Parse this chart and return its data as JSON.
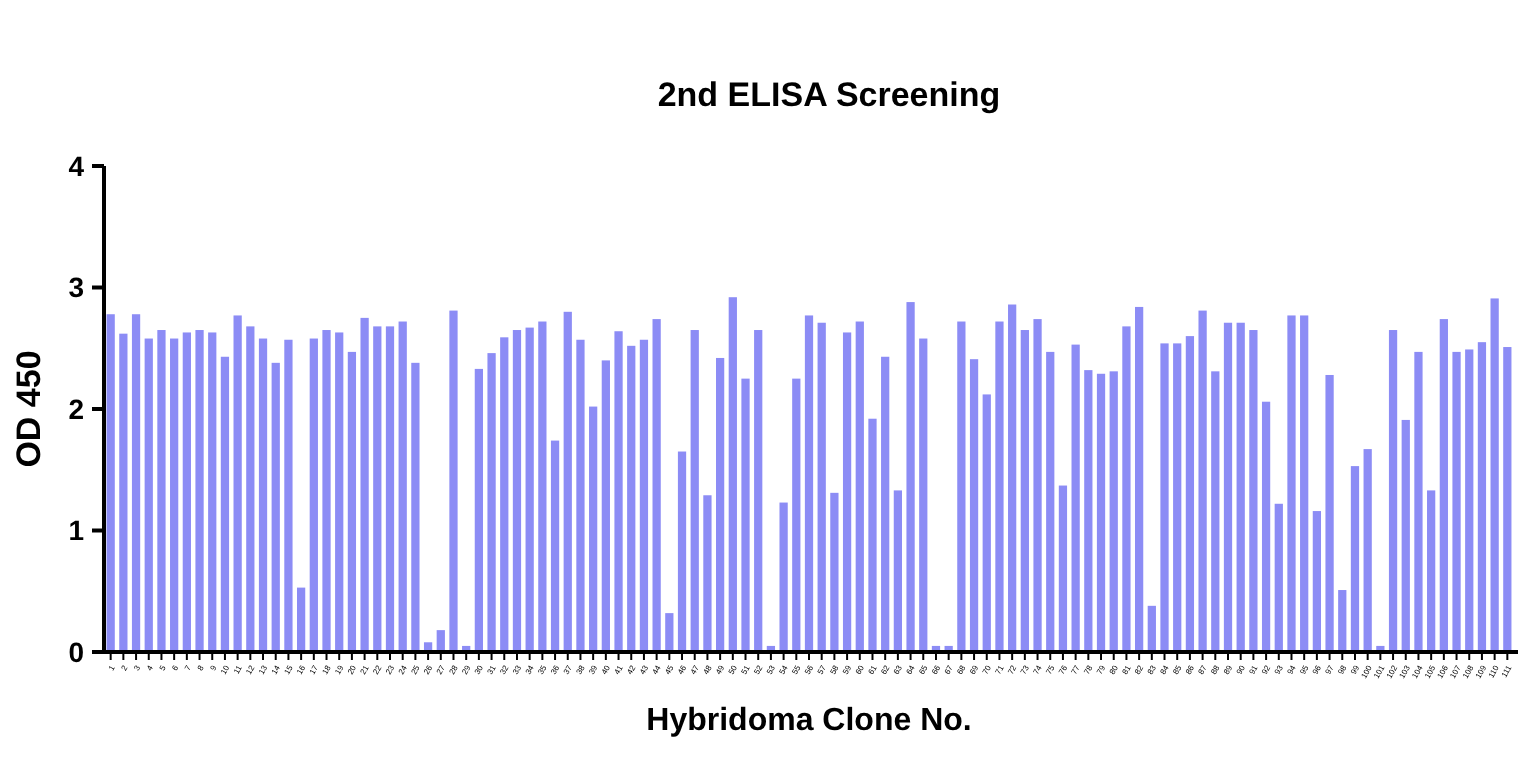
{
  "chart_data": {
    "type": "bar",
    "title": "2nd ELISA Screening",
    "xlabel": "Hybridoma Clone No.",
    "ylabel": "OD 450",
    "categories": [
      "1",
      "2",
      "3",
      "4",
      "5",
      "6",
      "7",
      "8",
      "9",
      "10",
      "11",
      "12",
      "13",
      "14",
      "15",
      "16",
      "17",
      "18",
      "19",
      "20",
      "21",
      "22",
      "23",
      "24",
      "25",
      "26",
      "27",
      "28",
      "29",
      "30",
      "31",
      "32",
      "33",
      "34",
      "35",
      "36",
      "37",
      "38",
      "39",
      "40",
      "41",
      "42",
      "43",
      "44",
      "45",
      "46",
      "47",
      "48",
      "49",
      "50",
      "51",
      "52",
      "53",
      "54",
      "55",
      "56",
      "57",
      "58",
      "59",
      "60",
      "61",
      "62",
      "63",
      "64",
      "65",
      "66",
      "67",
      "68",
      "69",
      "70",
      "71",
      "72",
      "73",
      "74",
      "75",
      "76",
      "77",
      "78",
      "79",
      "80",
      "81",
      "82",
      "83",
      "84",
      "85",
      "86",
      "87",
      "88",
      "89",
      "90",
      "91",
      "92",
      "93",
      "94",
      "95",
      "96",
      "97",
      "98",
      "99",
      "100",
      "101",
      "102",
      "103",
      "104",
      "105",
      "106",
      "107",
      "108",
      "109",
      "110",
      "111"
    ],
    "values": [
      2.78,
      2.62,
      2.78,
      2.58,
      2.65,
      2.58,
      2.63,
      2.65,
      2.63,
      2.43,
      2.77,
      2.68,
      2.58,
      2.38,
      2.57,
      0.53,
      2.58,
      2.65,
      2.63,
      2.47,
      2.75,
      2.68,
      2.68,
      2.72,
      2.38,
      0.08,
      0.18,
      2.81,
      0.05,
      2.33,
      2.46,
      2.59,
      2.65,
      2.67,
      2.72,
      1.74,
      2.8,
      2.57,
      2.02,
      2.4,
      2.64,
      2.52,
      2.57,
      2.74,
      0.32,
      1.65,
      2.65,
      1.29,
      2.42,
      2.92,
      2.25,
      2.65,
      0.05,
      1.23,
      2.25,
      2.77,
      2.71,
      1.31,
      2.63,
      2.72,
      1.92,
      2.43,
      1.33,
      2.88,
      2.58,
      0.05,
      0.05,
      2.72,
      2.41,
      2.12,
      2.72,
      2.86,
      2.65,
      2.74,
      2.47,
      1.37,
      2.53,
      2.32,
      2.29,
      2.31,
      2.68,
      2.84,
      0.38,
      2.54,
      2.54,
      2.6,
      2.81,
      2.31,
      2.71,
      2.71,
      2.65,
      2.06,
      1.22,
      2.77,
      2.77,
      1.16,
      2.28,
      0.51,
      1.53,
      1.67,
      0.05,
      2.65,
      1.91,
      2.47,
      1.33,
      2.74,
      2.47,
      2.49,
      2.55,
      2.91,
      2.51
    ],
    "color": "#8c8cf5",
    "ylim": [
      0,
      4
    ],
    "yticks": [
      0,
      1,
      2,
      3,
      4
    ],
    "grid": false
  }
}
